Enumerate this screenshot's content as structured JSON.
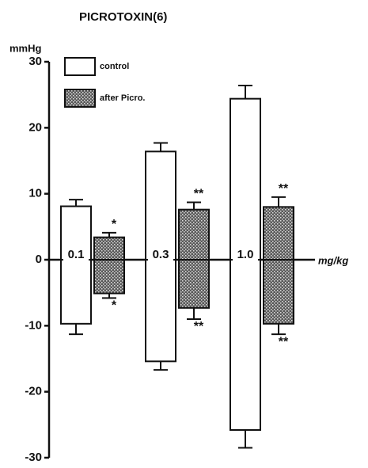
{
  "chart_data": {
    "type": "bar",
    "title": "PICROTOXIN(6)",
    "y_label": "mmHg",
    "x_label": "mg/kg",
    "categories": [
      "0.1",
      "0.3",
      "1.0"
    ],
    "series": [
      {
        "name": "control",
        "color": "#ffffff",
        "pattern": false,
        "values": [
          8.1,
          16.4,
          24.4
        ],
        "errors": [
          1.0,
          1.3,
          2.0
        ],
        "values_down": [
          -9.7,
          -15.4,
          -25.8
        ],
        "errors_down": [
          1.6,
          1.3,
          2.7
        ]
      },
      {
        "name": "after Picro.",
        "color": "#5a5a5a",
        "pattern": true,
        "values": [
          3.4,
          7.6,
          8.0
        ],
        "errors": [
          0.7,
          1.1,
          1.5
        ],
        "values_down": [
          -5.1,
          -7.3,
          -9.7
        ],
        "errors_down": [
          0.7,
          1.7,
          1.6
        ],
        "annotations_up": [
          "*",
          "**",
          "**"
        ],
        "annotations_down": [
          "*",
          "**",
          "**"
        ]
      }
    ],
    "ylim": [
      -30,
      30
    ],
    "yticks": [
      -30,
      -20,
      -10,
      0,
      10,
      20,
      30
    ],
    "grid": false
  }
}
